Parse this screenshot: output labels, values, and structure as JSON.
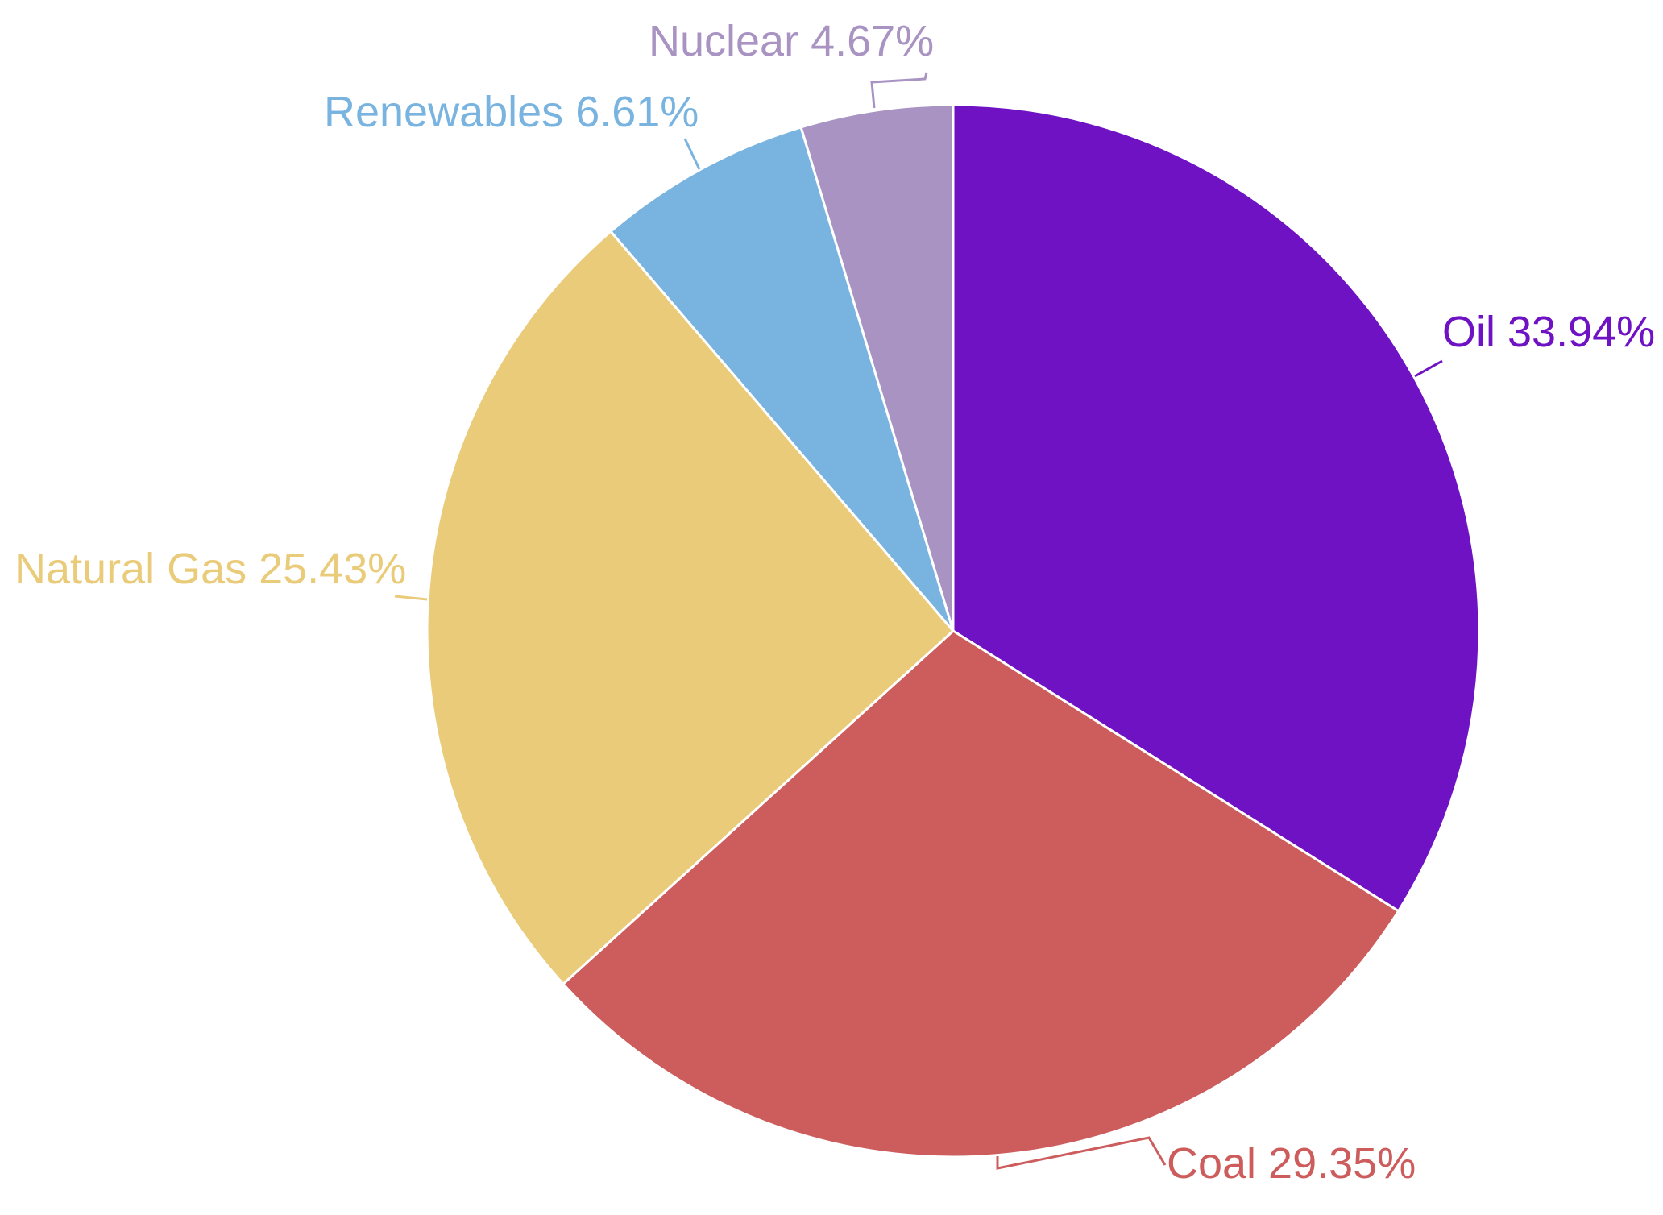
{
  "chart_data": {
    "type": "pie",
    "title": "",
    "slices": [
      {
        "name": "Oil",
        "value": 33.94,
        "label": "Oil 33.94%",
        "color": "#6E12C4"
      },
      {
        "name": "Coal",
        "value": 29.35,
        "label": "Coal 29.35%",
        "color": "#CD5C5C"
      },
      {
        "name": "Natural Gas",
        "value": 25.43,
        "label": "Natural Gas 25.43%",
        "color": "#E9CB79"
      },
      {
        "name": "Renewables",
        "value": 6.61,
        "label": "Renewables 6.61%",
        "color": "#79B4E0"
      },
      {
        "name": "Nuclear",
        "value": 4.67,
        "label": "Nuclear 4.67%",
        "color": "#A893C2"
      }
    ],
    "start_angle_deg": 0,
    "direction": "clockwise",
    "legend": "none",
    "slice_border_color": "#ffffff"
  }
}
